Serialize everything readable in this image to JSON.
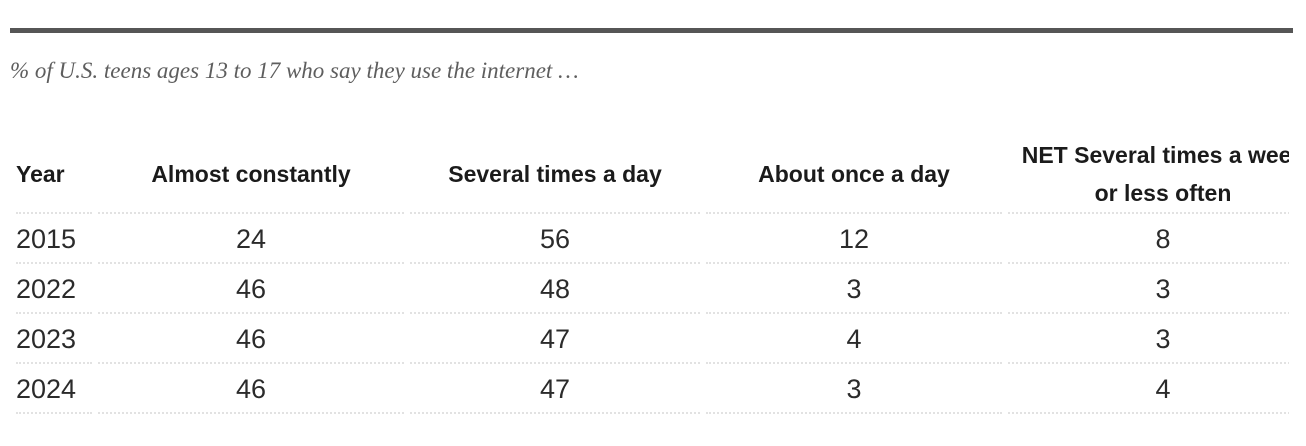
{
  "subtitle": "% of U.S. teens ages 13 to 17 who say they use the internet …",
  "table": {
    "columns": [
      {
        "label": "Year"
      },
      {
        "label": "Almost constantly"
      },
      {
        "label": "Several times a day"
      },
      {
        "label": "About once a day"
      },
      {
        "label": "NET Several times a week or less often",
        "line1": "NET Several times a week",
        "line2": "or less often"
      }
    ]
  },
  "chart_data": {
    "type": "table",
    "subtitle": "% of U.S. teens ages 13 to 17 who say they use the internet …",
    "columns": [
      "Year",
      "Almost constantly",
      "Several times a day",
      "About once a day",
      "NET Several times a week or less often"
    ],
    "rows": [
      [
        "2015",
        24,
        56,
        12,
        8
      ],
      [
        "2022",
        46,
        48,
        3,
        3
      ],
      [
        "2023",
        46,
        47,
        4,
        3
      ],
      [
        "2024",
        46,
        47,
        3,
        4
      ]
    ],
    "units": "% of U.S. teens",
    "layout_hints": {
      "year_column_align": "left",
      "value_columns_align": "center",
      "last_column_clipped_at_right_edge": true
    }
  },
  "colors": {
    "top_rule": "#565656",
    "subtitle_text": "#5e5e5e",
    "header_text": "#1b1b1b",
    "cell_text": "#2b2b2b",
    "row_divider": "#e2e2e2",
    "background": "#ffffff"
  }
}
